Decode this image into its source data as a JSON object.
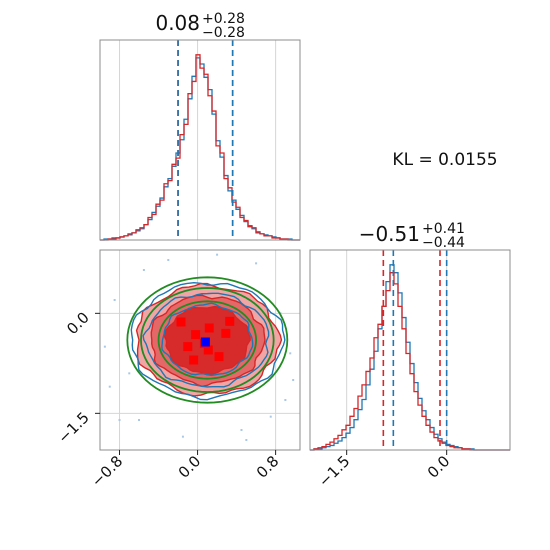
{
  "figure": {
    "kl_text": "KL = 0.0155",
    "colors": {
      "blue": "#1f77b4",
      "red": "#d62728",
      "green": "#228b22",
      "red_fill_light": "#f0a0a0",
      "red_fill_mid": "#e46464",
      "red_fill_dark": "#d62728",
      "marker_red": "#ff0000",
      "marker_blue": "#0000ff"
    }
  },
  "chart_data": [
    {
      "type": "histogram",
      "panel": "top-left",
      "title": "0.08",
      "title_sup": "+0.28",
      "title_sub": "−0.28",
      "xlim": [
        -1.0,
        1.05
      ],
      "grid_x": [
        -0.8,
        0.0,
        0.8
      ],
      "bin_start": -1.0,
      "bin_width": 0.041,
      "series": [
        {
          "color": "blue",
          "counts": [
            0,
            1,
            1,
            2,
            2,
            3,
            4,
            5,
            7,
            9,
            11,
            15,
            20,
            27,
            33,
            41,
            52,
            60,
            72,
            85,
            98,
            118,
            138,
            160,
            178,
            172,
            159,
            147,
            123,
            97,
            81,
            63,
            48,
            39,
            30,
            24,
            18,
            14,
            11,
            8,
            6,
            5,
            4,
            3,
            2,
            1,
            1,
            1,
            0,
            0
          ]
        },
        {
          "color": "red",
          "counts": [
            0,
            0,
            1,
            1,
            2,
            3,
            4,
            6,
            7,
            10,
            12,
            15,
            22,
            25,
            35,
            39,
            55,
            58,
            74,
            80,
            103,
            113,
            143,
            155,
            181,
            168,
            162,
            141,
            126,
            92,
            85,
            60,
            51,
            37,
            32,
            22,
            19,
            13,
            12,
            7,
            6,
            4,
            4,
            2,
            2,
            1,
            1,
            0,
            0,
            0
          ]
        }
      ],
      "vlines": [
        {
          "x": -0.2,
          "color": "red"
        },
        {
          "x": 0.36,
          "color": "red"
        },
        {
          "x": -0.2,
          "color": "blue"
        },
        {
          "x": 0.36,
          "color": "blue"
        }
      ]
    },
    {
      "type": "contour",
      "panel": "bottom-left",
      "xlim": [
        -1.0,
        1.05
      ],
      "ylim": [
        -2.05,
        0.95
      ],
      "xticks": [
        "−0.8",
        "0.0",
        "0.8"
      ],
      "xtick_values": [
        -0.8,
        0.0,
        0.8
      ],
      "yticks": [
        "0.0",
        "−1.5"
      ],
      "ytick_values": [
        0.0,
        -1.5
      ],
      "center": [
        0.1,
        -0.4
      ],
      "contour_levels_red": [
        {
          "rx": 0.73,
          "ry": 0.82,
          "fill": "red_fill_light"
        },
        {
          "rx": 0.58,
          "ry": 0.66,
          "fill": "red_fill_mid"
        },
        {
          "rx": 0.43,
          "ry": 0.5,
          "fill": "red_fill_dark"
        }
      ],
      "contour_levels_blue": [
        {
          "rx": 0.78,
          "ry": 0.86
        },
        {
          "rx": 0.63,
          "ry": 0.7
        },
        {
          "rx": 0.46,
          "ry": 0.53
        }
      ],
      "contour_levels_green": [
        {
          "rx": 0.82,
          "ry": 0.94
        },
        {
          "rx": 0.68,
          "ry": 0.78
        },
        {
          "rx": 0.5,
          "ry": 0.58
        }
      ],
      "red_markers": [
        [
          0.33,
          -0.12
        ],
        [
          -0.17,
          -0.13
        ],
        [
          0.12,
          -0.22
        ],
        [
          -0.02,
          -0.32
        ],
        [
          0.29,
          -0.3
        ],
        [
          -0.1,
          -0.5
        ],
        [
          0.11,
          -0.55
        ],
        [
          0.22,
          -0.65
        ],
        [
          -0.04,
          -0.7
        ],
        [
          0.07,
          -0.45
        ]
      ],
      "blue_marker": [
        0.08,
        -0.43
      ],
      "scatter_points": [
        [
          -0.85,
          0.2
        ],
        [
          -0.7,
          -0.9
        ],
        [
          0.9,
          -1.3
        ],
        [
          -0.3,
          0.8
        ],
        [
          0.6,
          0.75
        ],
        [
          0.85,
          0.0
        ],
        [
          -0.9,
          -1.1
        ],
        [
          0.95,
          -0.6
        ],
        [
          -0.6,
          -1.6
        ],
        [
          0.45,
          -1.75
        ],
        [
          -0.15,
          -1.85
        ],
        [
          0.75,
          -1.55
        ],
        [
          -0.55,
          0.65
        ],
        [
          0.2,
          0.88
        ],
        [
          -0.95,
          -0.5
        ],
        [
          0.98,
          -1.0
        ],
        [
          0.5,
          -1.9
        ],
        [
          -0.8,
          -1.6
        ]
      ]
    },
    {
      "type": "histogram",
      "panel": "bottom-right",
      "title": "−0.51",
      "title_sup": "+0.41",
      "title_sub": "−0.44",
      "xlim": [
        -2.05,
        0.95
      ],
      "xticks": [
        "−1.5",
        "0.0"
      ],
      "xtick_values": [
        -1.5,
        0.0
      ],
      "bin_start": -2.05,
      "bin_width": 0.06,
      "series": [
        {
          "color": "blue",
          "counts": [
            0,
            1,
            1,
            2,
            3,
            4,
            6,
            8,
            11,
            15,
            20,
            27,
            36,
            45,
            58,
            72,
            88,
            108,
            128,
            150,
            165,
            158,
            140,
            118,
            96,
            77,
            60,
            46,
            35,
            27,
            20,
            14,
            10,
            7,
            5,
            4,
            3,
            2,
            1,
            1,
            1,
            0,
            0,
            0,
            0,
            0,
            0,
            0,
            0,
            0
          ]
        },
        {
          "color": "red",
          "counts": [
            0,
            1,
            2,
            3,
            5,
            7,
            10,
            13,
            18,
            22,
            30,
            37,
            48,
            58,
            70,
            82,
            100,
            112,
            128,
            142,
            158,
            148,
            128,
            108,
            86,
            68,
            52,
            40,
            30,
            22,
            16,
            11,
            8,
            6,
            4,
            3,
            2,
            2,
            1,
            1,
            0,
            0,
            0,
            0,
            0,
            0,
            0,
            0,
            0,
            0
          ]
        }
      ],
      "vlines": [
        {
          "x": -0.95,
          "color": "red"
        },
        {
          "x": -0.1,
          "color": "red"
        },
        {
          "x": -0.8,
          "color": "blue"
        },
        {
          "x": 0.0,
          "color": "blue"
        }
      ]
    }
  ]
}
